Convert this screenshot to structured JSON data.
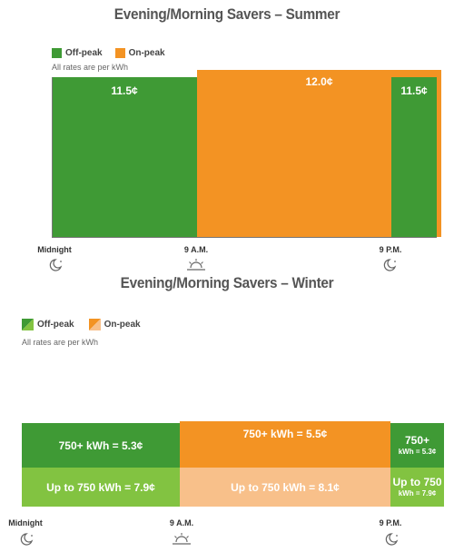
{
  "chart_data": [
    {
      "type": "bar",
      "title": "Evening/Morning Savers – Summer",
      "legend": [
        {
          "label": "Off-peak",
          "color": "#3f9a35"
        },
        {
          "label": "On-peak",
          "color": "#f39323"
        }
      ],
      "note": "All rates are per kWh",
      "periods": [
        {
          "start": "Midnight",
          "end": "9 A.M.",
          "rate": 11.5,
          "label": "11.5¢",
          "type": "Off-peak"
        },
        {
          "start": "9 A.M.",
          "end": "9 P.M.",
          "rate": 12.0,
          "label": "12.0¢",
          "type": "On-peak"
        },
        {
          "start": "9 P.M.",
          "end": "Midnight",
          "rate": 11.5,
          "label": "11.5¢",
          "type": "Off-peak"
        }
      ],
      "ticks": [
        "Midnight",
        "9 A.M.",
        "9 P.M."
      ]
    },
    {
      "type": "bar",
      "title": "Evening/Morning Savers – Winter",
      "legend": [
        {
          "label": "Off-peak",
          "color": "#3f9a35",
          "color2": "#82c341"
        },
        {
          "label": "On-peak",
          "color": "#f39323",
          "color2": "#f8c08a"
        }
      ],
      "note": "All rates are per kWh",
      "periods": [
        {
          "start": "Midnight",
          "end": "9 A.M.",
          "type": "Off-peak",
          "tiers": [
            {
              "label": "750+ kWh = 5.3¢",
              "rate": 5.3
            },
            {
              "label": "Up to 750 kWh = 7.9¢",
              "rate": 7.9
            }
          ]
        },
        {
          "start": "9 A.M.",
          "end": "9 P.M.",
          "type": "On-peak",
          "tiers": [
            {
              "label": "750+ kWh = 5.5¢",
              "rate": 5.5
            },
            {
              "label": "Up to 750 kWh = 8.1¢",
              "rate": 8.1
            }
          ]
        },
        {
          "start": "9 P.M.",
          "end": "Midnight",
          "type": "Off-peak",
          "tiers": [
            {
              "label": "750+",
              "sublabel": "kWh = 5.3¢",
              "rate": 5.3
            },
            {
              "label": "Up to 750",
              "sublabel": "kWh = 7.9¢",
              "rate": 7.9
            }
          ]
        }
      ],
      "ticks": [
        "Midnight",
        "9 A.M.",
        "9 P.M."
      ]
    }
  ]
}
